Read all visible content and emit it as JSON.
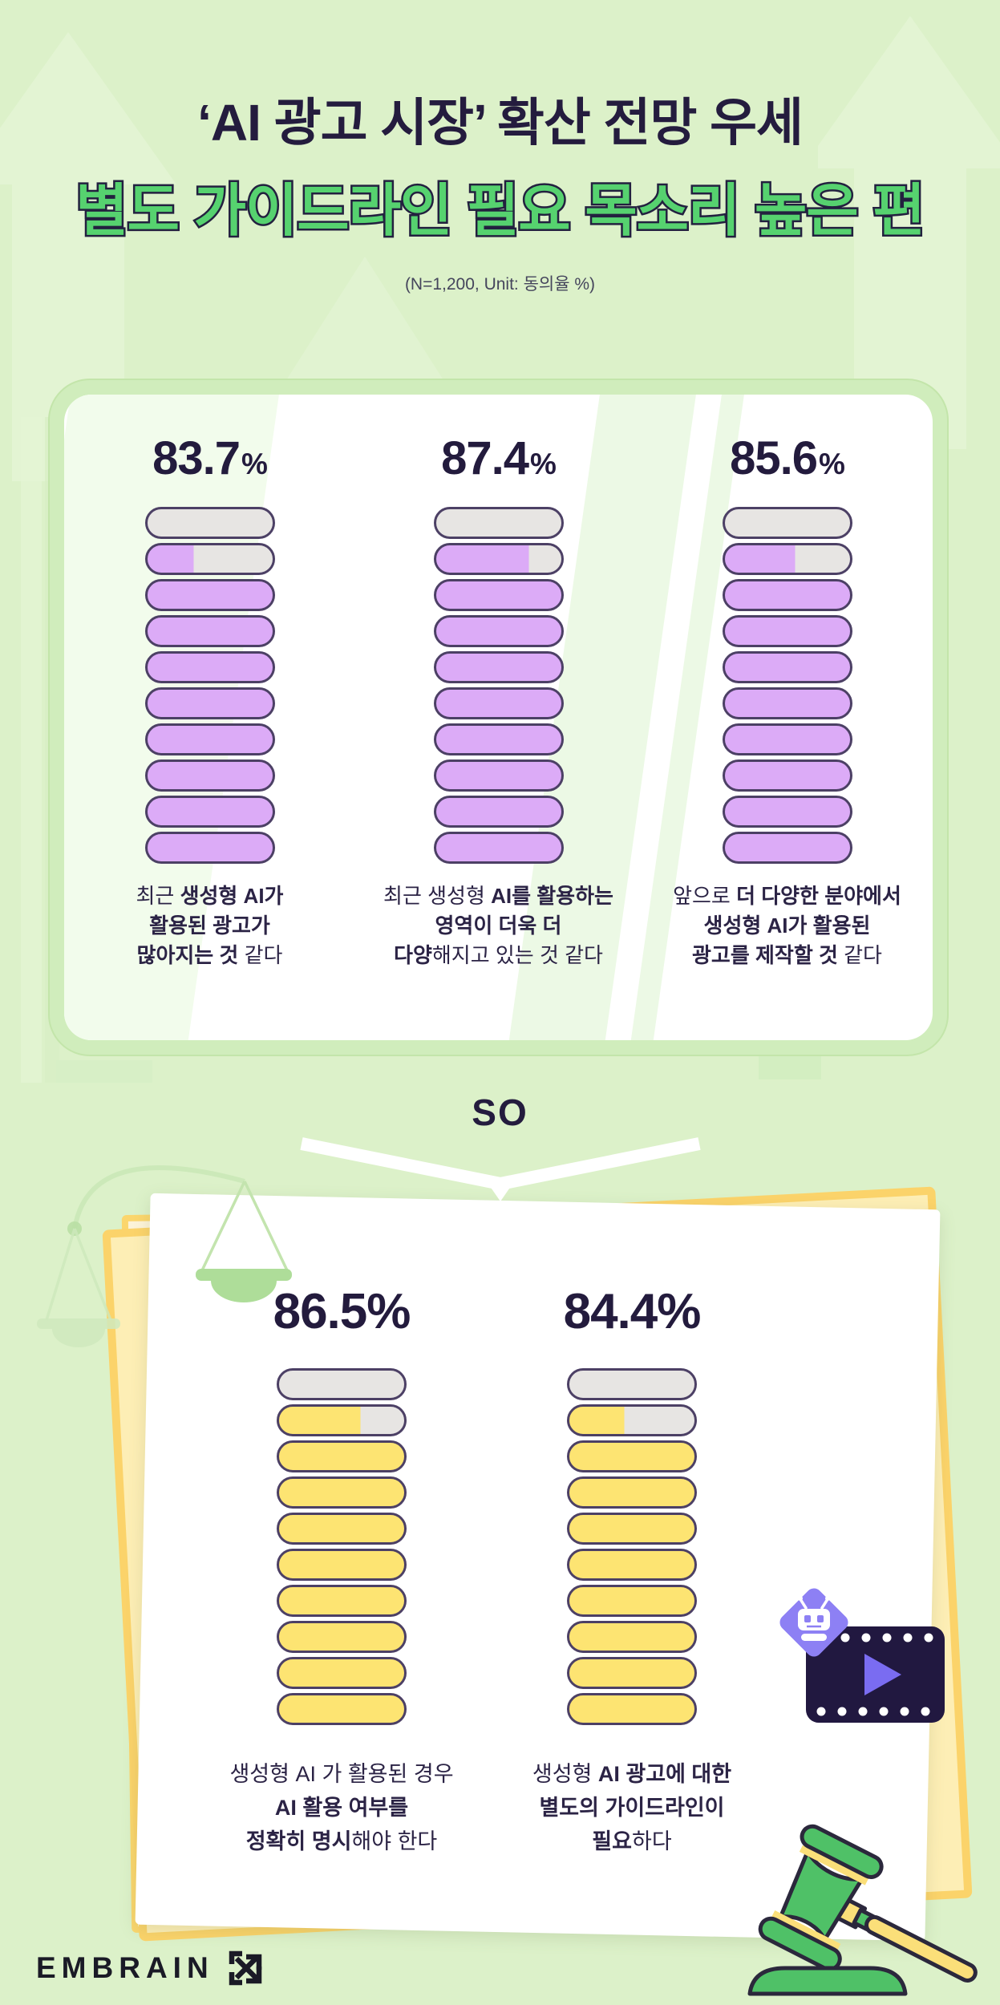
{
  "header": {
    "title_line1": "‘AI 광고 시장’ 확산 전망 우세",
    "title_line2": "별도 가이드라인 필요 목소리 높은 편",
    "note": "(N=1,200, Unit: 동의율 %)"
  },
  "so_label": "SO",
  "footer": {
    "brand": "EMBRAIN"
  },
  "colors": {
    "background": "#dcf1c9",
    "title_navy": "#241c3e",
    "title_green": "#56d26f",
    "card_band_green": "#d0edbc",
    "purple_fill": "#dcabf7",
    "yellow_fill": "#fde472",
    "empty_fill": "#e7e5e3",
    "capsule_border": "#4c4065",
    "paper_yellow": "#fdeeb5",
    "paper_yellow_border": "#fbd36a",
    "film_navy": "#211840",
    "play_purple": "#7a6cf1",
    "diamond_purple": "#8d80f4",
    "gavel_green": "#4fc167",
    "gavel_yellow": "#fbdf79",
    "scale_green": "#aedd99"
  },
  "chart_data": [
    {
      "type": "bar",
      "style": "capsule-stack",
      "capsules": 10,
      "ylim": [
        0,
        100
      ],
      "unit": "동의율 %",
      "sample": "N=1,200",
      "bar_color": "#dcabf7",
      "empty_color": "#e7e5e3",
      "categories": [
        "최근 생성형 AI가 활용된 광고가 많아지는 것 같다",
        "최근 생성형 AI를 활용하는 영역이 더욱 더 다양해지고 있는 것 같다",
        "앞으로 더 다양한 분야에서 생성형 AI가 활용된 광고를 제작할 것 같다"
      ],
      "values": [
        83.7,
        87.4,
        85.6
      ],
      "items": [
        {
          "value_label": "83.7",
          "sym": "%",
          "small_sym": true,
          "caption_lines": [
            [
              {
                "t": "최근 ",
                "b": 0
              },
              {
                "t": "생성형 AI가",
                "b": 1
              }
            ],
            [
              {
                "t": "활용된 광고가",
                "b": 1
              }
            ],
            [
              {
                "t": "많아지는 것",
                "b": 1
              },
              {
                "t": " 같다",
                "b": 0
              }
            ]
          ]
        },
        {
          "value_label": "87.4",
          "sym": "%",
          "small_sym": true,
          "caption_lines": [
            [
              {
                "t": "최근 생성형 ",
                "b": 0
              },
              {
                "t": "AI를 활용하는",
                "b": 1
              }
            ],
            [
              {
                "t": "영역이 더욱 더",
                "b": 1
              }
            ],
            [
              {
                "t": "다양",
                "b": 1
              },
              {
                "t": "해지고 있는 것 같다",
                "b": 0
              }
            ]
          ]
        },
        {
          "value_label": "85.6",
          "sym": "%",
          "small_sym": true,
          "caption_lines": [
            [
              {
                "t": "앞으로 ",
                "b": 0
              },
              {
                "t": "더 다양한 분야에서",
                "b": 1
              }
            ],
            [
              {
                "t": "생성형 AI가 활용된",
                "b": 1
              }
            ],
            [
              {
                "t": "광고를 제작할 것",
                "b": 1
              },
              {
                "t": " 같다",
                "b": 0
              }
            ]
          ]
        }
      ]
    },
    {
      "type": "bar",
      "style": "capsule-stack",
      "capsules": 10,
      "ylim": [
        0,
        100
      ],
      "unit": "동의율 %",
      "sample": "N=1,200",
      "bar_color": "#fde472",
      "empty_color": "#e7e5e3",
      "categories": [
        "생성형 AI 가 활용된 경우 AI 활용 여부를 정확히 명시해야 한다",
        "생성형 AI 광고에 대한 별도의 가이드라인이 필요하다"
      ],
      "values": [
        86.5,
        84.4
      ],
      "items": [
        {
          "value_label": "86.5",
          "sym": "%",
          "small_sym": false,
          "caption_lines": [
            [
              {
                "t": "생성형 AI 가 활용된 경우",
                "b": 0
              }
            ],
            [
              {
                "t": "AI 활용 여부를",
                "b": 1
              }
            ],
            [
              {
                "t": "정확히 명시",
                "b": 1
              },
              {
                "t": "해야 한다",
                "b": 0
              }
            ]
          ]
        },
        {
          "value_label": "84.4",
          "sym": "%",
          "small_sym": false,
          "caption_lines": [
            [
              {
                "t": "생성형 ",
                "b": 0
              },
              {
                "t": "AI 광고에 대한",
                "b": 1
              }
            ],
            [
              {
                "t": "별도의 가이드라인이",
                "b": 1
              }
            ],
            [
              {
                "t": "필요",
                "b": 1
              },
              {
                "t": "하다",
                "b": 0
              }
            ]
          ]
        }
      ]
    }
  ]
}
